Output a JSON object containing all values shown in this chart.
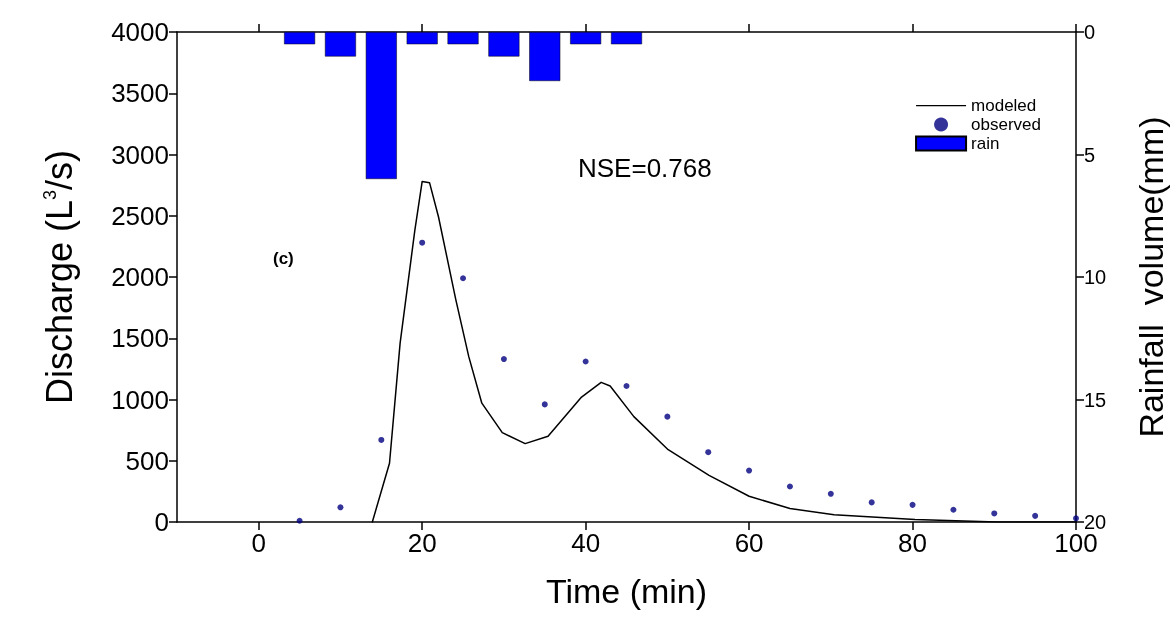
{
  "chart_data": {
    "type": "line",
    "xlabel": "Time (min)",
    "ylabel": "Discharge (L$^{3}$/s)",
    "y2label": "Rainfall  volume(mm)",
    "annotations": [
      "NSE=0.768",
      "(c)"
    ],
    "xlim": [
      -10,
      100
    ],
    "xticks": [
      0,
      20,
      40,
      60,
      80,
      100
    ],
    "ylim": [
      0,
      4000
    ],
    "yticks": [
      0,
      500,
      1000,
      1500,
      2000,
      2500,
      3000,
      3500,
      4000
    ],
    "y2lim": [
      20,
      0
    ],
    "y2ticks": [
      0,
      5,
      10,
      15,
      20
    ],
    "grid": false,
    "legend": "top right",
    "series": [
      {
        "name": "modeled",
        "color": "#000000",
        "marker": "none",
        "line_style": "solid",
        "x": [
          13.9,
          16.0,
          17.3,
          19.1,
          20.0,
          20.9,
          22.0,
          24.1,
          25.7,
          27.3,
          29.8,
          32.6,
          35.4,
          39.5,
          41.9,
          43.0,
          45.9,
          50.1,
          55.1,
          60.0,
          65.0,
          70.4,
          80.3,
          90.3,
          100
        ],
        "values": [
          0,
          480,
          1460,
          2380,
          2780,
          2770,
          2490,
          1820,
          1350,
          970,
          730,
          640,
          700,
          1020,
          1140,
          1110,
          860,
          590,
          380,
          210,
          110,
          60,
          20,
          0,
          0
        ]
      },
      {
        "name": "observed",
        "type": "scatter",
        "color": "#000080",
        "marker": "circle",
        "x": [
          5,
          10,
          15,
          20,
          25,
          30,
          35,
          40,
          45,
          50,
          55,
          60,
          65,
          70,
          75,
          80,
          85,
          90,
          95,
          100
        ],
        "values": [
          10,
          120,
          670,
          2280,
          1990,
          1330,
          960,
          1310,
          1110,
          860,
          570,
          420,
          290,
          230,
          160,
          140,
          100,
          70,
          50,
          30
        ]
      },
      {
        "name": "rain",
        "type": "bar",
        "axis": "y2",
        "color": "#0000ff",
        "x": [
          5,
          10,
          15,
          20,
          25,
          30,
          35,
          40,
          45
        ],
        "values": [
          0.5,
          1,
          6,
          0.5,
          0.5,
          1,
          2,
          0.5,
          0.5
        ]
      }
    ]
  }
}
